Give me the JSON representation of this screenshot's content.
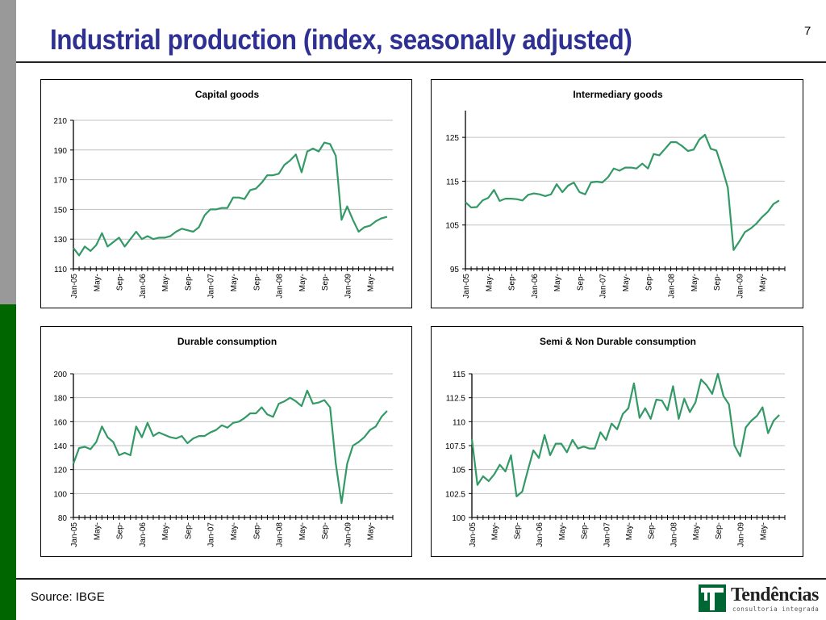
{
  "slide": {
    "title": "Industrial production (index, seasonally adjusted)",
    "page_number": "7",
    "source": "Source: IBGE",
    "logo": {
      "brand": "Tendências",
      "tagline": "consultoria integrada",
      "icon": "tendencias-logo-icon"
    },
    "colors": {
      "title": "#2e3192",
      "line": "#339966",
      "sidebar_top": "#999999",
      "sidebar_bottom": "#006600",
      "grid": "#c0c0c0"
    }
  },
  "chart_data": [
    {
      "type": "line",
      "title": "Capital goods",
      "xlabel": "",
      "ylabel": "",
      "x_start": "Jan-05",
      "x_end": "Sep-09",
      "tick_labels": [
        "Jan-05",
        "May-",
        "Sep-",
        "Jan-06",
        "May-",
        "Sep-",
        "Jan-07",
        "May-",
        "Sep-",
        "Jan-08",
        "May-",
        "Sep-",
        "Jan-09",
        "May-"
      ],
      "yticks": [
        110,
        130,
        150,
        170,
        190,
        210
      ],
      "ylim": [
        110,
        210
      ],
      "grid": true,
      "legend": "none",
      "values": [
        124,
        119,
        125,
        122,
        126,
        134,
        125,
        128,
        131,
        125,
        130,
        135,
        130,
        132,
        130,
        131,
        131,
        132,
        135,
        137,
        136,
        135,
        138,
        146,
        150,
        150,
        151,
        151,
        158,
        158,
        157,
        163,
        164,
        168,
        173,
        173,
        174,
        180,
        183,
        187,
        175,
        189,
        191,
        189,
        195,
        194,
        186,
        143,
        152,
        143,
        135,
        138,
        139,
        142,
        144,
        145
      ]
    },
    {
      "type": "line",
      "title": "Intermediary goods",
      "xlabel": "",
      "ylabel": "",
      "x_start": "Jan-05",
      "x_end": "Sep-09",
      "tick_labels": [
        "Jan-05",
        "May-",
        "Sep-",
        "Jan-06",
        "May-",
        "Sep-",
        "Jan-07",
        "May-",
        "Sep-",
        "Jan-08",
        "May-",
        "Sep-",
        "Jan-09",
        "May-"
      ],
      "yticks": [
        95,
        105,
        115,
        125
      ],
      "ylim": [
        95,
        130
      ],
      "grid": true,
      "legend": "none",
      "values": [
        110.2,
        109.0,
        109.1,
        110.6,
        111.2,
        113.0,
        110.5,
        111.0,
        111.0,
        110.9,
        110.6,
        111.9,
        112.2,
        112.0,
        111.6,
        112.0,
        114.3,
        112.5,
        114.0,
        114.7,
        112.5,
        112.0,
        114.7,
        114.9,
        114.7,
        115.9,
        117.9,
        117.4,
        118.1,
        118.1,
        117.9,
        119.0,
        117.9,
        121.2,
        120.9,
        122.4,
        123.9,
        123.9,
        123.0,
        121.9,
        122.2,
        124.5,
        125.6,
        122.4,
        122.0,
        118.0,
        113.5,
        99.3,
        101.2,
        103.4,
        104.2,
        105.3,
        106.8,
        108.0,
        109.8,
        110.6
      ]
    },
    {
      "type": "line",
      "title": "Durable consumption",
      "xlabel": "",
      "ylabel": "",
      "x_start": "Jan-05",
      "x_end": "Sep-09",
      "tick_labels": [
        "Jan-05",
        "May-",
        "Sep-",
        "Jan-06",
        "May-",
        "Sep-",
        "Jan-07",
        "May-",
        "Sep-",
        "Jan-08",
        "May-",
        "Sep-",
        "Jan-09",
        "May-"
      ],
      "yticks": [
        80,
        100,
        120,
        140,
        160,
        180,
        200
      ],
      "ylim": [
        80,
        200
      ],
      "grid": true,
      "legend": "none",
      "values": [
        125,
        138,
        139,
        137,
        143,
        156,
        147,
        143,
        132,
        134,
        132,
        156,
        147,
        159,
        148,
        151,
        149,
        147,
        146,
        148,
        142,
        146,
        148,
        148,
        151,
        153,
        157,
        155,
        159,
        160,
        163,
        167,
        167,
        172,
        166,
        164,
        175,
        177,
        180,
        177,
        173,
        186,
        175,
        176,
        178,
        172,
        125,
        92,
        125,
        140,
        143,
        147,
        153,
        156,
        164,
        169
      ]
    },
    {
      "type": "line",
      "title": "Semi & Non Durable consumption",
      "xlabel": "",
      "ylabel": "",
      "x_start": "Jan-05",
      "x_end": "Sep-09",
      "tick_labels": [
        "Jan-05",
        "May-",
        "Sep-",
        "Jan-06",
        "May-",
        "Sep-",
        "Jan-07",
        "May-",
        "Sep-",
        "Jan-08",
        "May-",
        "Sep-",
        "Jan-09",
        "May-"
      ],
      "yticks": [
        100,
        102.5,
        105,
        107.5,
        110,
        112.5,
        115
      ],
      "ylim": [
        100,
        115
      ],
      "grid": true,
      "legend": "none",
      "values": [
        108.2,
        103.4,
        104.3,
        103.8,
        104.5,
        105.5,
        104.8,
        106.5,
        102.2,
        102.7,
        104.9,
        107.0,
        106.2,
        108.6,
        106.5,
        107.7,
        107.7,
        106.8,
        108.1,
        107.2,
        107.4,
        107.2,
        107.2,
        108.9,
        108.1,
        109.8,
        109.2,
        110.8,
        111.4,
        114.0,
        110.4,
        111.4,
        110.3,
        112.3,
        112.2,
        111.2,
        113.7,
        110.3,
        112.4,
        111.0,
        112.0,
        114.4,
        113.8,
        112.9,
        115.0,
        112.7,
        111.8,
        107.5,
        106.4,
        109.4,
        110.1,
        110.6,
        111.5,
        108.8,
        110.1,
        110.7
      ]
    }
  ]
}
